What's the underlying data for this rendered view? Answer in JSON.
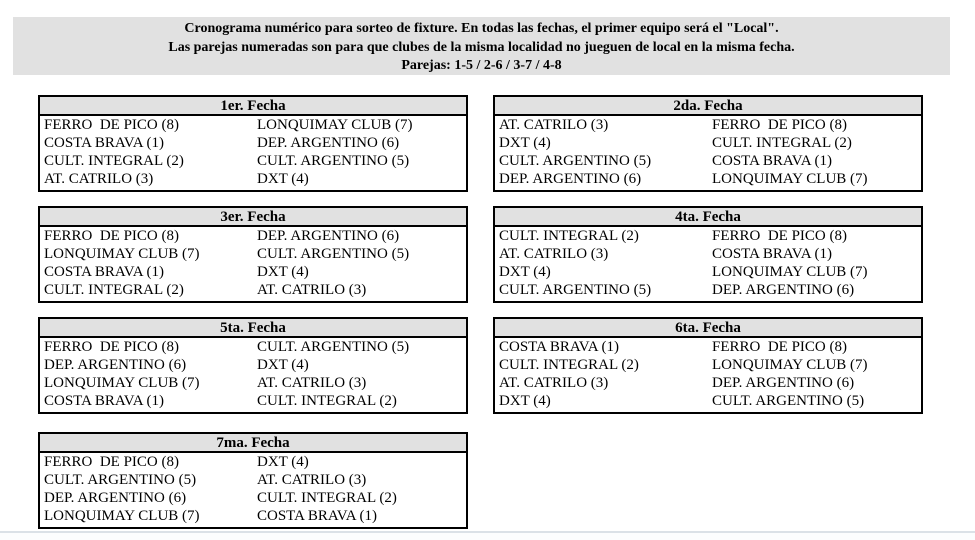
{
  "header": {
    "line1": "Cronograma numérico para sorteo de fixture. En todas las fechas, el primer equipo será el \"Local\".",
    "line2": "Las parejas numeradas son para que clubes de la misma localidad no jueguen de local en la misma fecha.",
    "line3": "Parejas: 1-5 / 2-6 / 3-7 / 4-8"
  },
  "fechas": [
    {
      "title": "1er. Fecha",
      "matches": [
        [
          "FERRO  DE PICO (8)",
          "LONQUIMAY CLUB (7)"
        ],
        [
          "COSTA BRAVA (1)",
          "DEP. ARGENTINO (6)"
        ],
        [
          "CULT. INTEGRAL (2)",
          "CULT. ARGENTINO (5)"
        ],
        [
          "AT. CATRILO (3)",
          "DXT (4)"
        ]
      ]
    },
    {
      "title": "2da. Fecha",
      "matches": [
        [
          "AT. CATRILO (3)",
          "FERRO  DE PICO (8)"
        ],
        [
          "DXT (4)",
          "CULT. INTEGRAL (2)"
        ],
        [
          "CULT. ARGENTINO (5)",
          "COSTA BRAVA (1)"
        ],
        [
          "DEP. ARGENTINO (6)",
          "LONQUIMAY CLUB (7)"
        ]
      ]
    },
    {
      "title": "3er. Fecha",
      "matches": [
        [
          "FERRO  DE PICO (8)",
          "DEP. ARGENTINO (6)"
        ],
        [
          "LONQUIMAY CLUB (7)",
          "CULT. ARGENTINO (5)"
        ],
        [
          "COSTA BRAVA (1)",
          "DXT (4)"
        ],
        [
          "CULT. INTEGRAL (2)",
          "AT. CATRILO (3)"
        ]
      ]
    },
    {
      "title": "4ta. Fecha",
      "matches": [
        [
          "CULT. INTEGRAL (2)",
          "FERRO  DE PICO (8)"
        ],
        [
          "AT. CATRILO (3)",
          "COSTA BRAVA (1)"
        ],
        [
          "DXT (4)",
          "LONQUIMAY CLUB (7)"
        ],
        [
          "CULT. ARGENTINO (5)",
          "DEP. ARGENTINO (6)"
        ]
      ]
    },
    {
      "title": "5ta. Fecha",
      "matches": [
        [
          "FERRO  DE PICO (8)",
          "CULT. ARGENTINO (5)"
        ],
        [
          "DEP. ARGENTINO (6)",
          "DXT (4)"
        ],
        [
          "LONQUIMAY CLUB (7)",
          "AT. CATRILO (3)"
        ],
        [
          "COSTA BRAVA (1)",
          "CULT. INTEGRAL (2)"
        ]
      ]
    },
    {
      "title": "6ta. Fecha",
      "matches": [
        [
          "COSTA BRAVA (1)",
          "FERRO  DE PICO (8)"
        ],
        [
          "CULT. INTEGRAL (2)",
          "LONQUIMAY CLUB (7)"
        ],
        [
          "AT. CATRILO (3)",
          "DEP. ARGENTINO (6)"
        ],
        [
          "DXT (4)",
          "CULT. ARGENTINO (5)"
        ]
      ]
    },
    {
      "title": "7ma. Fecha",
      "matches": [
        [
          "FERRO  DE PICO (8)",
          "DXT (4)"
        ],
        [
          "CULT. ARGENTINO (5)",
          "AT. CATRILO (3)"
        ],
        [
          "DEP. ARGENTINO (6)",
          "CULT. INTEGRAL (2)"
        ],
        [
          "LONQUIMAY CLUB (7)",
          "COSTA BRAVA (1)"
        ]
      ]
    }
  ],
  "colors": {
    "panel_bg": "#e1e1e1",
    "table_header_bg": "#e1e1e1",
    "border": "#000000",
    "page_edge": "#dbe1e7"
  }
}
